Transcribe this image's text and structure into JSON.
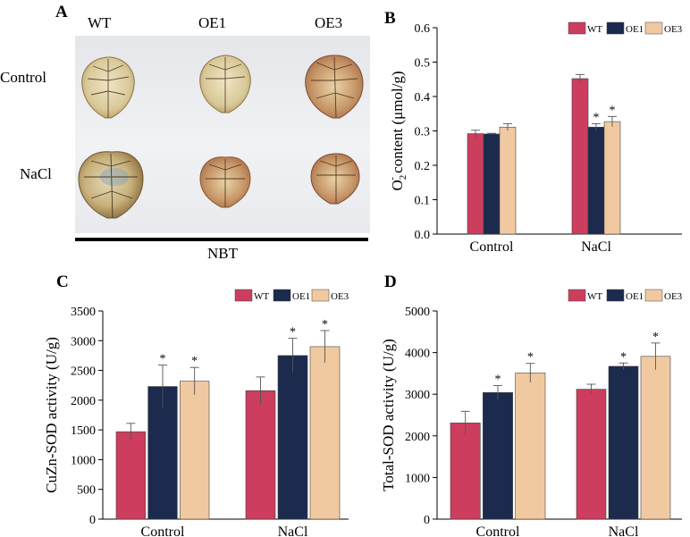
{
  "panel_a": {
    "letter": "A",
    "columns": [
      "WT",
      "OE1",
      "OE3"
    ],
    "rows": [
      "Control",
      "NaCl"
    ],
    "stain_label": "NBT"
  },
  "colors": {
    "WT": "#cc3d5e",
    "OE1": "#1b2a4d",
    "OE3": "#f1c9a1"
  },
  "chart_data": [
    {
      "panel": "B",
      "type": "bar",
      "categories": [
        "Control",
        "NaCl"
      ],
      "series": [
        {
          "name": "WT",
          "values": [
            0.292,
            0.452
          ],
          "errors": [
            0.01,
            0.012
          ],
          "sig": [
            "",
            ""
          ]
        },
        {
          "name": "OE1",
          "values": [
            0.291,
            0.311
          ],
          "errors": [
            0.002,
            0.01
          ],
          "sig": [
            "",
            "*"
          ]
        },
        {
          "name": "OE3",
          "values": [
            0.311,
            0.327
          ],
          "errors": [
            0.01,
            0.015
          ],
          "sig": [
            "",
            "*"
          ]
        }
      ],
      "ylim": [
        0,
        0.6
      ],
      "yticks": [
        0.0,
        0.1,
        0.2,
        0.3,
        0.4,
        0.5,
        0.6
      ],
      "ytick_labels": [
        "0.0",
        "0.1",
        "0.2",
        "0.3",
        "0.4",
        "0.5",
        "0.6"
      ],
      "ylabel": "O2- content (μmol/g)",
      "ylabel_main": "O",
      "ylabel_sub": "2",
      "ylabel_sup": "-",
      "ylabel_rest": " content (μmol/g)",
      "xlabel": "",
      "legend": [
        "WT",
        "OE1",
        "OE3"
      ],
      "legend_position": "top-right"
    },
    {
      "panel": "C",
      "type": "bar",
      "categories": [
        "Control",
        "NaCl"
      ],
      "series": [
        {
          "name": "WT",
          "values": [
            1470,
            2160
          ],
          "errors": [
            140,
            230
          ],
          "sig": [
            "",
            ""
          ]
        },
        {
          "name": "OE1",
          "values": [
            2230,
            2750
          ],
          "errors": [
            360,
            290
          ],
          "sig": [
            "*",
            "*"
          ]
        },
        {
          "name": "OE3",
          "values": [
            2320,
            2900
          ],
          "errors": [
            230,
            270
          ],
          "sig": [
            "*",
            "*"
          ]
        }
      ],
      "ylim": [
        0,
        3500
      ],
      "yticks": [
        0,
        500,
        1000,
        1500,
        2000,
        2500,
        3000,
        3500
      ],
      "ytick_labels": [
        "0",
        "500",
        "1000",
        "1500",
        "2000",
        "2500",
        "3000",
        "3500"
      ],
      "ylabel": "CuZn-SOD activity (U/g)",
      "xlabel": "",
      "legend": [
        "WT",
        "OE1",
        "OE3"
      ],
      "legend_position": "top-right"
    },
    {
      "panel": "D",
      "type": "bar",
      "categories": [
        "Control",
        "NaCl"
      ],
      "series": [
        {
          "name": "WT",
          "values": [
            2310,
            3120
          ],
          "errors": [
            280,
            120
          ],
          "sig": [
            "",
            ""
          ]
        },
        {
          "name": "OE1",
          "values": [
            3040,
            3670
          ],
          "errors": [
            170,
            80
          ],
          "sig": [
            "*",
            "*"
          ]
        },
        {
          "name": "OE3",
          "values": [
            3510,
            3910
          ],
          "errors": [
            230,
            320
          ],
          "sig": [
            "*",
            "*"
          ]
        }
      ],
      "ylim": [
        0,
        5000
      ],
      "yticks": [
        0,
        1000,
        2000,
        3000,
        4000,
        5000
      ],
      "ytick_labels": [
        "0",
        "1000",
        "2000",
        "3000",
        "4000",
        "5000"
      ],
      "ylabel": "Total-SOD activity (U/g)",
      "xlabel": "",
      "legend": [
        "WT",
        "OE1",
        "OE3"
      ],
      "legend_position": "top-right"
    }
  ]
}
